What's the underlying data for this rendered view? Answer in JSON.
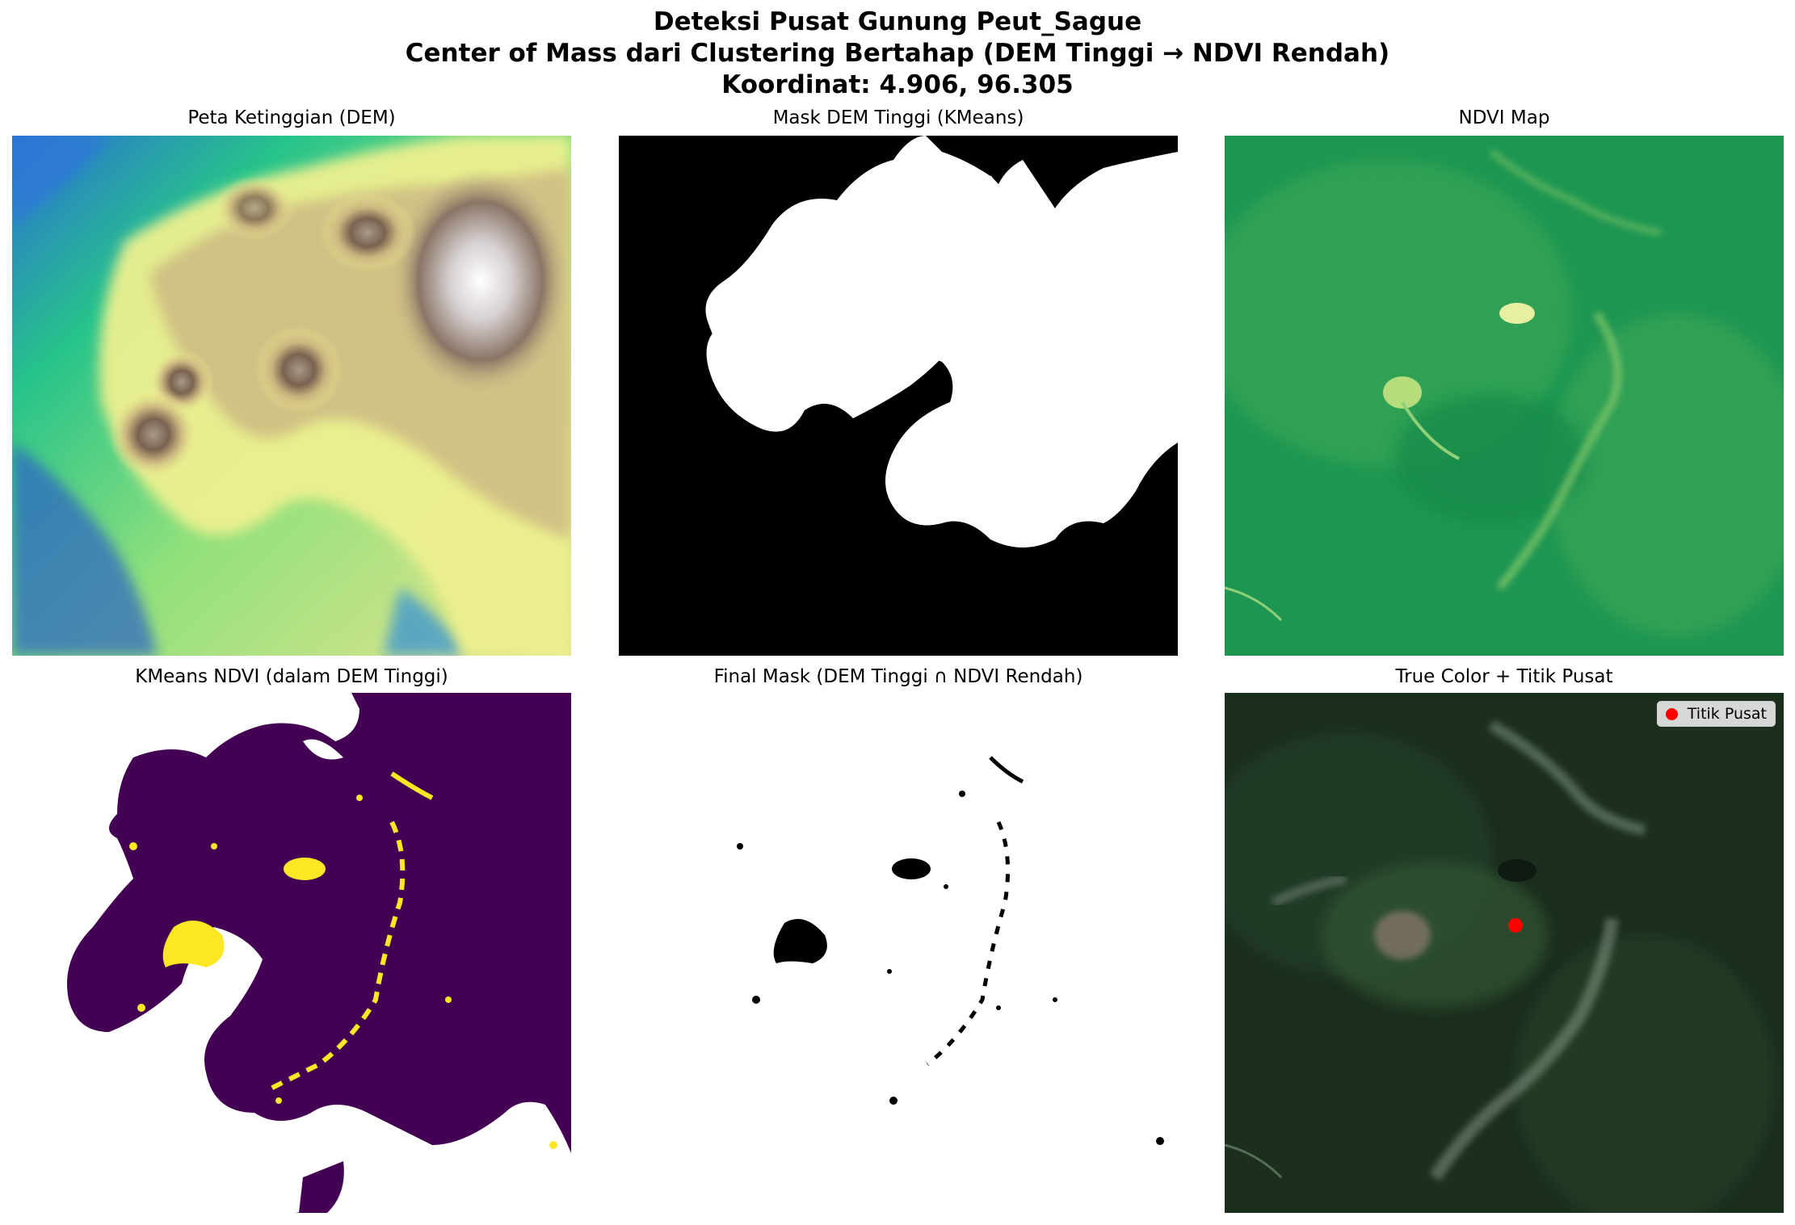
{
  "figure": {
    "title_lines": [
      "Deteksi Pusat Gunung Peut_Sague",
      "Center of Mass dari Clustering Bertahap (DEM Tinggi → NDVI Rendah)",
      "Koordinat: 4.906, 96.305"
    ]
  },
  "panels": {
    "dem": {
      "title": "Peta Ketinggian (DEM)",
      "colormap": "terrain"
    },
    "mask_dem": {
      "title": "Mask DEM Tinggi (KMeans)",
      "colors": {
        "fg": "#ffffff",
        "bg": "#000000"
      }
    },
    "ndvi": {
      "title": "NDVI Map",
      "colormap": "green"
    },
    "kmeans_ndvi": {
      "title": "KMeans NDVI (dalam DEM Tinggi)",
      "colors": {
        "cluster0": "#440154",
        "cluster1": "#fde725",
        "outside": "#ffffff"
      }
    },
    "final_mask": {
      "title": "Final Mask (DEM Tinggi ∩ NDVI Rendah)",
      "colors": {
        "fg": "#000000",
        "bg": "#ffffff"
      }
    },
    "true_color": {
      "title": "True Color + Titik Pusat",
      "legend_label": "Titik Pusat",
      "marker_color": "#ff0000"
    }
  }
}
